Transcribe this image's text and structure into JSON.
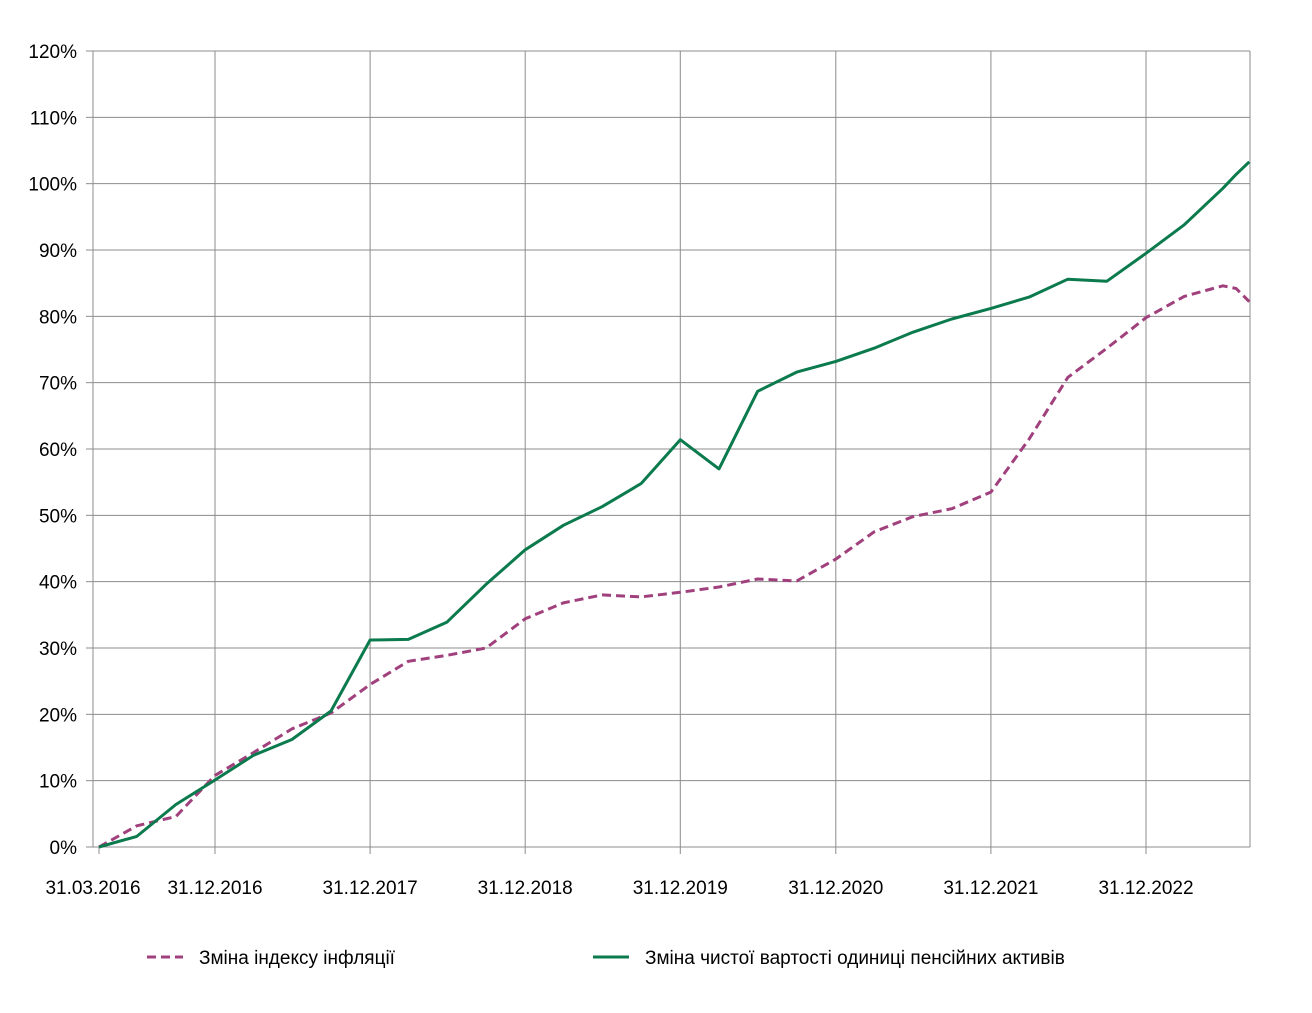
{
  "chart_data": {
    "type": "line",
    "title": "",
    "xlabel": "",
    "ylabel": "",
    "x_tick_labels": [
      "31.03.2016",
      "31.12.2016",
      "31.12.2017",
      "31.12.2018",
      "31.12.2019",
      "31.12.2020",
      "31.12.2021",
      "31.12.2022"
    ],
    "y_tick_labels": [
      "0%",
      "10%",
      "20%",
      "30%",
      "40%",
      "50%",
      "60%",
      "70%",
      "80%",
      "90%",
      "100%",
      "110%",
      "120%"
    ],
    "ylim": [
      0,
      120
    ],
    "grid": true,
    "legend_position": "bottom",
    "x": [
      "2016-03-31",
      "2016-06-30",
      "2016-09-30",
      "2016-12-31",
      "2017-03-31",
      "2017-06-30",
      "2017-09-30",
      "2017-12-31",
      "2018-03-31",
      "2018-06-30",
      "2018-09-30",
      "2018-12-31",
      "2019-03-31",
      "2019-06-30",
      "2019-09-30",
      "2019-12-31",
      "2020-03-31",
      "2020-06-30",
      "2020-09-30",
      "2020-12-31",
      "2021-03-31",
      "2021-06-30",
      "2021-09-30",
      "2021-12-31",
      "2022-03-31",
      "2022-06-30",
      "2022-09-30",
      "2022-12-31",
      "2023-03-31",
      "2023-06-30",
      "2023-07-31",
      "2023-08-31"
    ],
    "series": [
      {
        "name": "Зміна індексу інфляції",
        "color": "#a0417d",
        "style": "dashed",
        "values": [
          0,
          3.2,
          4.6,
          10.8,
          14.2,
          17.8,
          20.2,
          24.5,
          28.0,
          28.9,
          30.0,
          34.4,
          36.8,
          38.0,
          37.7,
          38.4,
          39.2,
          40.4,
          40.1,
          43.4,
          47.5,
          49.8,
          51.0,
          53.5,
          61.5,
          70.8,
          75.2,
          79.8,
          83.0,
          84.6,
          84.2,
          82.2
        ]
      },
      {
        "name": "Зміна чистої вартості одиниці пенсійних  активів",
        "color": "#0b7a4d",
        "style": "solid",
        "values": [
          0,
          1.6,
          6.4,
          10.1,
          13.8,
          16.2,
          20.5,
          31.2,
          31.3,
          33.9,
          39.6,
          44.8,
          48.5,
          51.3,
          54.8,
          61.4,
          57.0,
          68.7,
          71.6,
          73.2,
          75.2,
          77.6,
          79.6,
          81.2,
          82.9,
          85.6,
          85.3,
          89.5,
          93.8,
          99.3,
          101.4,
          103.3
        ]
      }
    ]
  }
}
